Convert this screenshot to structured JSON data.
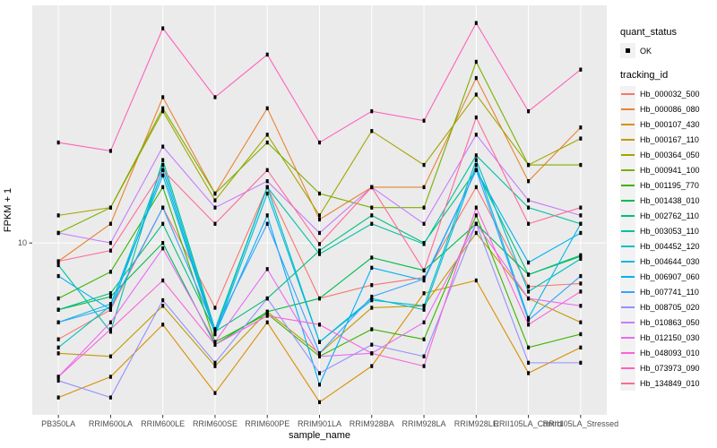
{
  "chart_data": {
    "type": "line",
    "title": "",
    "xlabel": "sample_name",
    "ylabel": "FPKM + 1",
    "y_scale": "log10",
    "y_tick_labels": [
      "10"
    ],
    "y_tick_values": [
      10
    ],
    "ylim": [
      1.95,
      95.8
    ],
    "grid": "vertical category gridlines + y=10 gridline, white on gray panel",
    "legend_position": "right",
    "panel_color": "#EBEBEB",
    "grid_color": "#FFFFFF",
    "point_color": "#000000",
    "tick_label_color": "#4D4D4D",
    "categories": [
      "PB350LA",
      "RRIM600LA",
      "RRIM600LE",
      "RRIM600SE",
      "RRIM600PE",
      "RRIM901LA",
      "RRIM928BA",
      "RRIM928LA",
      "RRIM928LE",
      "RRII105LA_Control",
      "RRII105LA_Stressed"
    ],
    "legend": {
      "quant_status_title": "quant_status",
      "quant_status_items": [
        "OK"
      ],
      "tracking_id_title": "tracking_id"
    },
    "series": [
      {
        "name": "Hb_000032_500",
        "color": "#F8766D",
        "values": [
          4.0,
          5.3,
          14,
          5.4,
          17,
          5.9,
          6.7,
          7.2,
          17,
          6.6,
          6.8
        ]
      },
      {
        "name": "Hb_000086_080",
        "color": "#EA8331",
        "values": [
          8.4,
          12,
          40,
          16,
          36,
          12.5,
          17,
          17,
          48,
          18,
          30
        ]
      },
      {
        "name": "Hb_000107_430",
        "color": "#D89000",
        "values": [
          2.3,
          2.8,
          4.6,
          2.4,
          4.7,
          2.2,
          3.1,
          6.2,
          7.0,
          2.9,
          3.7
        ]
      },
      {
        "name": "Hb_000167_110",
        "color": "#C09B00",
        "values": [
          3.5,
          3.4,
          5.5,
          3.1,
          5.2,
          3.5,
          5.4,
          5.5,
          11,
          5.9,
          4.7
        ]
      },
      {
        "name": "Hb_000364_050",
        "color": "#A3A500",
        "values": [
          13,
          14,
          35,
          15,
          28,
          13,
          29,
          21,
          41,
          21,
          27
        ]
      },
      {
        "name": "Hb_000941_100",
        "color": "#7CAE00",
        "values": [
          11,
          14,
          36,
          16,
          26,
          16,
          14,
          14,
          56,
          21,
          21
        ]
      },
      {
        "name": "Hb_001195_770",
        "color": "#39B600",
        "values": [
          5.9,
          7.6,
          17,
          3.9,
          5.1,
          3.4,
          4.4,
          4.0,
          13,
          3.7,
          4.2
        ]
      },
      {
        "name": "Hb_001438_010",
        "color": "#00BB4E",
        "values": [
          5.3,
          6.0,
          10,
          3.8,
          5.2,
          5.9,
          8.7,
          7.7,
          12,
          7.4,
          8.8
        ]
      },
      {
        "name": "Hb_002762_110",
        "color": "#00BF7D",
        "values": [
          5.3,
          6.2,
          12,
          4.3,
          5.9,
          9.3,
          13,
          10,
          20,
          7.4,
          8.9
        ]
      },
      {
        "name": "Hb_003053_110",
        "color": "#00C1A3",
        "values": [
          8.1,
          4.3,
          22,
          4.4,
          17,
          9.0,
          12,
          9.9,
          23,
          14,
          12
        ]
      },
      {
        "name": "Hb_004452_120",
        "color": "#00BFC4",
        "values": [
          3.7,
          5.5,
          21,
          4.3,
          17,
          3.9,
          5.8,
          5.5,
          22,
          6.3,
          8.6
        ]
      },
      {
        "name": "Hb_004644_030",
        "color": "#00BAE0",
        "values": [
          4.7,
          5.6,
          19,
          4.2,
          16,
          3.9,
          5.9,
          5.3,
          21,
          4.9,
          12
        ]
      },
      {
        "name": "Hb_006907_060",
        "color": "#00B0F6",
        "values": [
          7.3,
          5.3,
          20,
          4.2,
          13,
          2.6,
          7.9,
          7.0,
          20,
          8.3,
          11
        ]
      },
      {
        "name": "Hb_007741_110",
        "color": "#35A2FF",
        "values": [
          4.7,
          5.4,
          14,
          4.4,
          12,
          3.5,
          6.0,
          7.1,
          20,
          4.8,
          7.3
        ]
      },
      {
        "name": "Hb_008705_020",
        "color": "#9590FF",
        "values": [
          2.7,
          2.3,
          5.8,
          3.2,
          5.9,
          2.9,
          3.8,
          3.4,
          12,
          3.2,
          3.2
        ]
      },
      {
        "name": "Hb_010863_050",
        "color": "#C77CFF",
        "values": [
          11,
          10,
          25,
          14,
          18,
          11,
          17,
          12,
          28,
          15,
          13
        ]
      },
      {
        "name": "Hb_012150_030",
        "color": "#E76BF3",
        "values": [
          2.8,
          4.7,
          9.5,
          3.9,
          7.8,
          3.4,
          3.5,
          4.7,
          12,
          5.9,
          5.5
        ]
      },
      {
        "name": "Hb_048093_010",
        "color": "#FA62DB",
        "values": [
          2.8,
          4.4,
          7.0,
          3.8,
          5.0,
          4.6,
          3.5,
          3.1,
          14,
          4.6,
          6.3
        ]
      },
      {
        "name": "Hb_073973_090",
        "color": "#FF62BC",
        "values": [
          26,
          24,
          77,
          40,
          60,
          26,
          35,
          32,
          81,
          35,
          52
        ]
      },
      {
        "name": "Hb_134849_010",
        "color": "#FF6A98",
        "values": [
          8.4,
          9.3,
          20,
          12,
          20,
          9.9,
          17,
          7.7,
          33,
          12,
          14
        ]
      }
    ]
  }
}
